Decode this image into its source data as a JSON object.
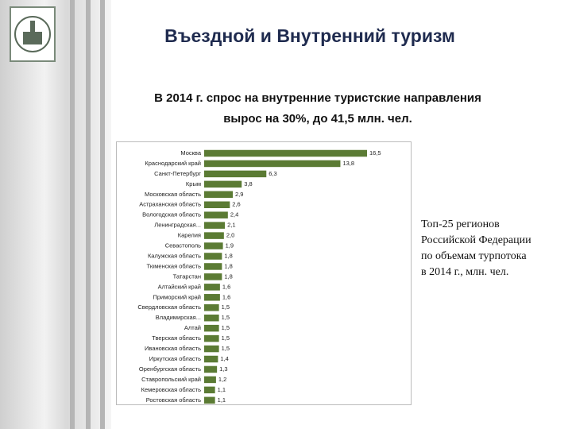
{
  "header": {
    "title": "Въездной и Внутренний туризм"
  },
  "subtitle": [
    "В 2014 г. спрос на внутренние туристские направления",
    "вырос на 30%, до 41,5 млн. чел."
  ],
  "caption": [
    "Топ-25 регионов",
    "Российской Федерации",
    "по объемам турпотока",
    "в 2014 г., млн. чел."
  ],
  "chart_data": {
    "type": "hbar",
    "color": "#5b7b34",
    "categories": [
      "Москва",
      "Краснодарский край",
      "Санкт-Петербург",
      "Крым",
      "Московская область",
      "Астраханская область",
      "Вологодская область",
      "Ленинградская...",
      "Карелия",
      "Севастополь",
      "Калужская область",
      "Тюменская область",
      "Татарстан",
      "Алтайский край",
      "Приморский край",
      "Свердловская область",
      "Владимирская...",
      "Алтай",
      "Тверская область",
      "Ивановская область",
      "Иркутская область",
      "Оренбургская область",
      "Ставропольский край",
      "Кемеровская область",
      "Ростовская область"
    ],
    "values": [
      16.5,
      13.8,
      6.3,
      3.8,
      2.9,
      2.6,
      2.4,
      2.1,
      2.0,
      1.9,
      1.8,
      1.8,
      1.8,
      1.6,
      1.6,
      1.5,
      1.5,
      1.5,
      1.5,
      1.5,
      1.4,
      1.3,
      1.2,
      1.1,
      1.1
    ],
    "value_labels": [
      "16,5",
      "13,8",
      "6,3",
      "3,8",
      "2,9",
      "2,6",
      "2,4",
      "2,1",
      "2,0",
      "1,9",
      "1,8",
      "1,8",
      "1,8",
      "1,6",
      "1,6",
      "1,5",
      "1,5",
      "1,5",
      "1,5",
      "1,5",
      "1,4",
      "1,3",
      "1,2",
      "1,1",
      "1,1"
    ]
  }
}
